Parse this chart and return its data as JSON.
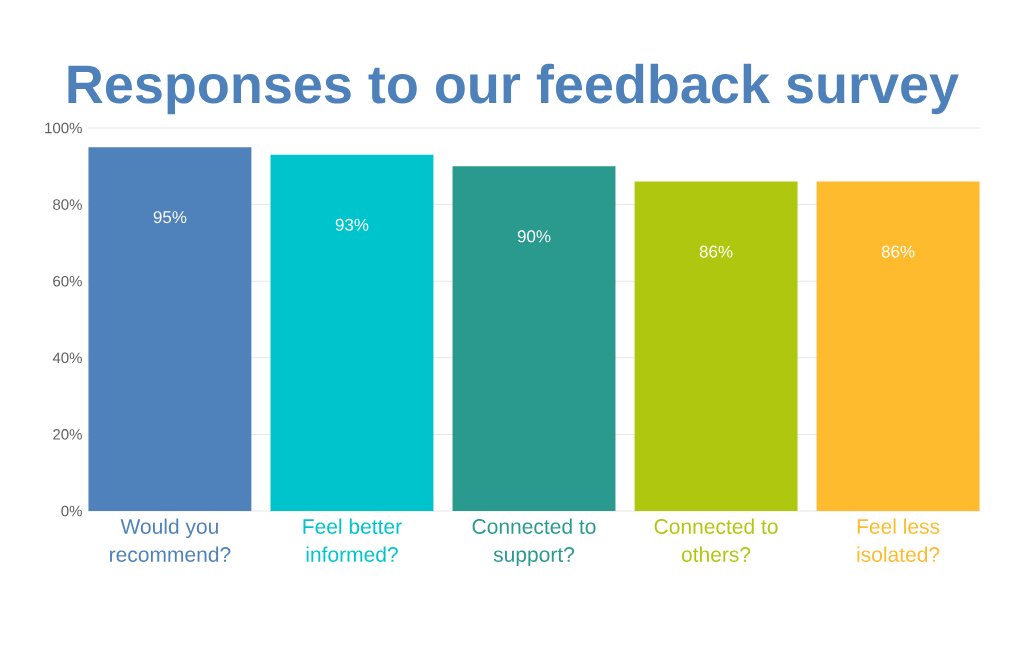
{
  "chart_data": {
    "type": "bar",
    "title": "Responses to our feedback survey",
    "categories": [
      "Would you recommend?",
      "Feel better informed?",
      "Connected to support?",
      "Connected to others?",
      "Feel less isolated?"
    ],
    "values": [
      95,
      93,
      90,
      86,
      86
    ],
    "value_labels": [
      "95%",
      "93%",
      "90%",
      "86%",
      "86%"
    ],
    "colors": [
      "#4f81bb",
      "#00c4cc",
      "#2a9a8e",
      "#afc80f",
      "#fdbb2d"
    ],
    "ylim": [
      0,
      100
    ],
    "yticks": [
      {
        "value": 0,
        "label": "0%"
      },
      {
        "value": 20,
        "label": "20%"
      },
      {
        "value": 40,
        "label": "40%"
      },
      {
        "value": 60,
        "label": "60%"
      },
      {
        "value": 80,
        "label": "80%"
      },
      {
        "value": 100,
        "label": "100%"
      }
    ],
    "grid": "y"
  }
}
